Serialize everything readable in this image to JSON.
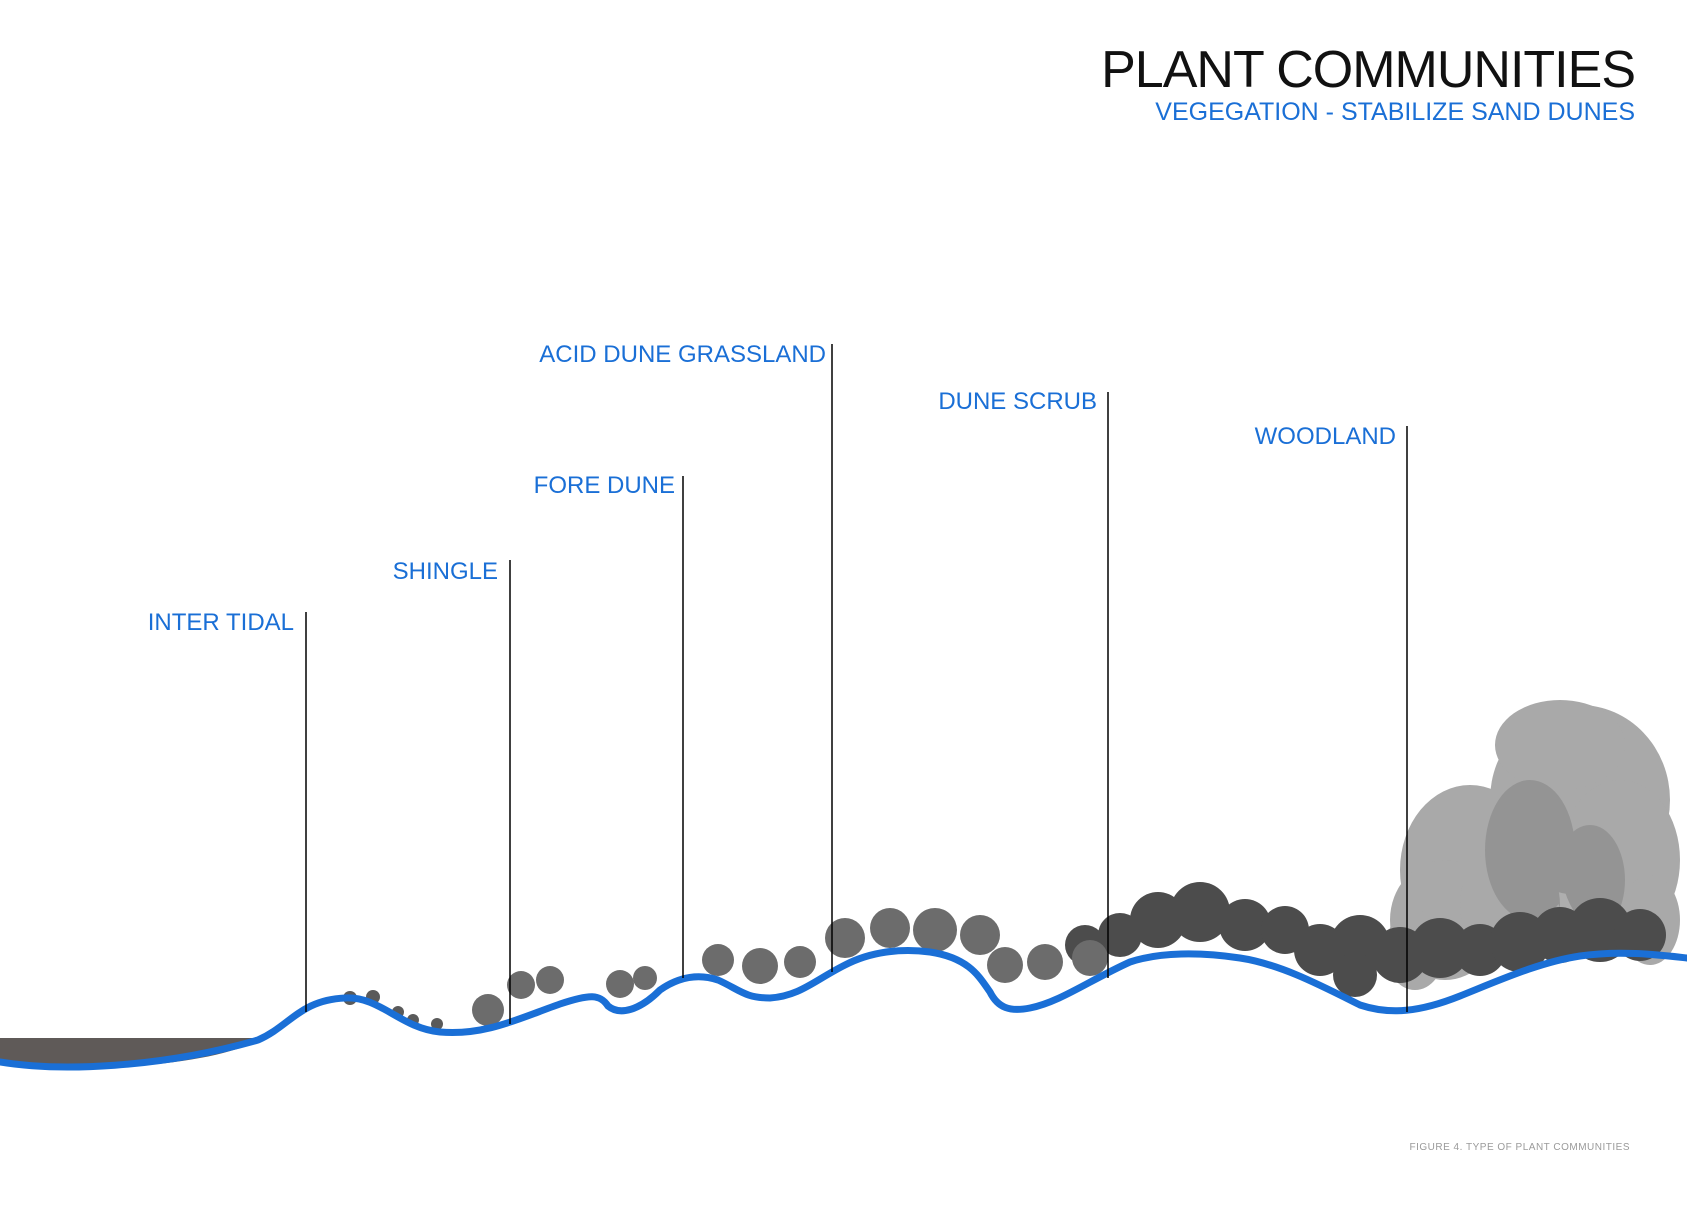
{
  "header": {
    "title": "PLANT COMMUNITIES",
    "subtitle": "VEGEGATION - STABILIZE SAND DUNES"
  },
  "zones": [
    {
      "label": "INTER TIDAL"
    },
    {
      "label": "SHINGLE"
    },
    {
      "label": "FORE DUNE"
    },
    {
      "label": "ACID DUNE GRASSLAND"
    },
    {
      "label": "DUNE SCRUB"
    },
    {
      "label": "WOODLAND"
    }
  ],
  "caption": "FIGURE 4. TYPE OF PLANT COMMUNITIES",
  "colors": {
    "accent_blue": "#1a6fd6",
    "title_black": "#111111",
    "vegetation_dark": "#4a4a4a",
    "vegetation_mid": "#7a7a7a",
    "tree_light": "#a8a8a8",
    "water_grey": "#5f5a58"
  }
}
